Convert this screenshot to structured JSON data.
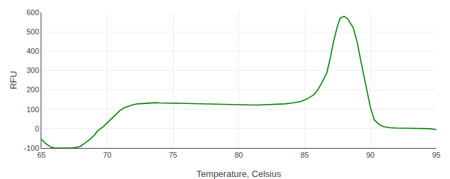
{
  "chart_data": {
    "type": "line",
    "xlabel": "Temperature, Celsius",
    "ylabel": "RFU",
    "xlim": [
      65,
      95
    ],
    "ylim": [
      -100,
      600
    ],
    "xticks": [
      65,
      70,
      75,
      80,
      85,
      90,
      95
    ],
    "yticks": [
      -100,
      0,
      100,
      200,
      300,
      400,
      500,
      600
    ],
    "color": "#008000",
    "grid": true,
    "x": [
      65.0,
      65.3,
      65.7,
      66.0,
      66.3,
      66.7,
      67.0,
      67.3,
      67.7,
      68.0,
      68.3,
      68.7,
      69.0,
      69.3,
      69.7,
      70.0,
      70.3,
      70.7,
      71.0,
      71.3,
      71.7,
      72.0,
      72.3,
      72.7,
      73.0,
      73.3,
      73.7,
      74.0,
      74.3,
      74.7,
      75.0,
      75.5,
      76.0,
      76.5,
      77.0,
      77.5,
      78.0,
      78.5,
      79.0,
      79.5,
      80.0,
      80.5,
      81.0,
      81.5,
      82.0,
      82.5,
      83.0,
      83.5,
      84.0,
      84.3,
      84.7,
      85.0,
      85.3,
      85.7,
      86.0,
      86.3,
      86.7,
      87.0,
      87.2,
      87.5,
      87.7,
      88.0,
      88.3,
      88.7,
      89.0,
      89.3,
      89.7,
      90.0,
      90.3,
      90.7,
      91.0,
      91.5,
      92.0,
      92.5,
      93.0,
      93.5,
      94.0,
      94.5,
      95.0
    ],
    "values": [
      -55,
      -75,
      -95,
      -100,
      -100,
      -100,
      -100,
      -100,
      -97,
      -90,
      -75,
      -55,
      -35,
      -10,
      10,
      30,
      50,
      75,
      95,
      108,
      118,
      124,
      128,
      130,
      132,
      133,
      134,
      133,
      133,
      132,
      132,
      131,
      130,
      129,
      128,
      127,
      126,
      126,
      125,
      124,
      123,
      122,
      122,
      122,
      123,
      124,
      126,
      128,
      132,
      135,
      140,
      148,
      158,
      175,
      200,
      235,
      290,
      380,
      450,
      530,
      570,
      580,
      565,
      520,
      445,
      340,
      215,
      110,
      45,
      20,
      10,
      5,
      3,
      2,
      2,
      2,
      1,
      0,
      -5
    ]
  }
}
